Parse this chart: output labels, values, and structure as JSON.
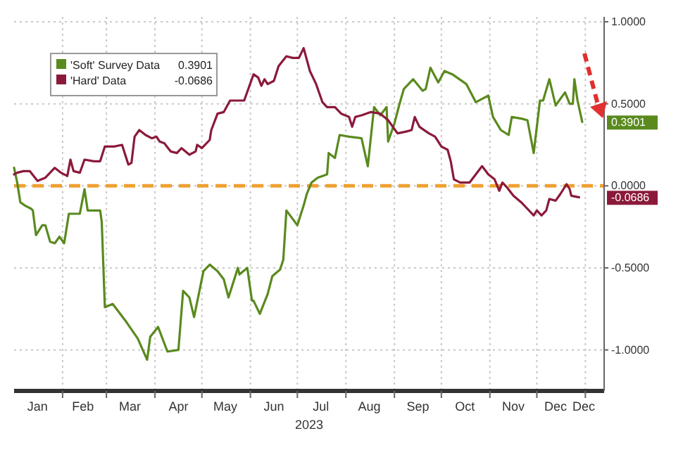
{
  "chart_data": {
    "type": "line",
    "xlabel": "2023",
    "legend": "top left",
    "grid": true,
    "line_style": "solid",
    "marker": "none",
    "xlim": [
      "2023-01-01",
      "2024-01-13"
    ],
    "xticks": [
      {
        "value": "2023-01-16",
        "label": "Jan"
      },
      {
        "value": "2023-02-01",
        "label": null
      },
      {
        "value": "2023-02-14",
        "label": "Feb"
      },
      {
        "value": "2023-03-01",
        "label": null
      },
      {
        "value": "2023-03-16",
        "label": "Mar"
      },
      {
        "value": "2023-04-01",
        "label": null
      },
      {
        "value": "2023-04-16",
        "label": "Apr"
      },
      {
        "value": "2023-05-01",
        "label": null
      },
      {
        "value": "2023-05-16",
        "label": "May"
      },
      {
        "value": "2023-06-01",
        "label": null
      },
      {
        "value": "2023-06-16",
        "label": "Jun"
      },
      {
        "value": "2023-07-01",
        "label": null
      },
      {
        "value": "2023-07-16",
        "label": "Jul"
      },
      {
        "value": "2023-08-01",
        "label": null
      },
      {
        "value": "2023-08-16",
        "label": "Aug"
      },
      {
        "value": "2023-09-01",
        "label": null
      },
      {
        "value": "2023-09-16",
        "label": "Sep"
      },
      {
        "value": "2023-10-01",
        "label": null
      },
      {
        "value": "2023-10-16",
        "label": "Oct"
      },
      {
        "value": "2023-11-01",
        "label": null
      },
      {
        "value": "2023-11-16",
        "label": "Nov"
      },
      {
        "value": "2023-12-01",
        "label": null
      },
      {
        "value": "2023-12-13",
        "label": "Dec"
      },
      {
        "value": "2024-01-01",
        "label": null
      },
      {
        "value": "2023-12-31",
        "label": "Dec"
      }
    ],
    "ylim": [
      -1.25,
      1.03
    ],
    "yticks": [
      {
        "value": 1,
        "label": "1.0000"
      },
      {
        "value": 0.5,
        "label": "0.5000"
      },
      {
        "value": 0,
        "label": "0.0000"
      },
      {
        "value": -0.5,
        "label": "-0.5000"
      },
      {
        "value": -1,
        "label": "-1.0000"
      }
    ],
    "ref_lines": [
      {
        "axis": "y",
        "value": 0,
        "color": "#f0a030",
        "line_style": "dashed"
      }
    ],
    "annotations": [
      {
        "text": "0.3901",
        "x": "2023-12-30",
        "y": 0.3901
      },
      {
        "text": "-0.0686",
        "x": "2023-12-28",
        "y": -0.0686
      }
    ],
    "series": [
      {
        "name": "'Soft' Survey Data",
        "color": "#5a8a1e",
        "x": [
          "2023-01-01",
          "2023-01-03",
          "2023-01-05",
          "2023-01-08",
          "2023-01-12",
          "2023-01-13",
          "2023-01-15",
          "2023-01-19",
          "2023-01-21",
          "2023-01-24",
          "2023-01-27",
          "2023-01-30",
          "2023-02-02",
          "2023-02-05",
          "2023-02-12",
          "2023-02-15",
          "2023-02-17",
          "2023-02-21",
          "2023-02-25",
          "2023-02-26",
          "2023-02-28",
          "2023-03-05",
          "2023-03-13",
          "2023-03-21",
          "2023-03-27",
          "2023-03-29",
          "2023-04-03",
          "2023-04-09",
          "2023-04-16",
          "2023-04-19",
          "2023-04-23",
          "2023-04-26",
          "2023-05-02",
          "2023-05-06",
          "2023-05-11",
          "2023-05-15",
          "2023-05-18",
          "2023-05-24",
          "2023-05-25",
          "2023-05-30",
          "2023-06-02",
          "2023-06-03",
          "2023-06-07",
          "2023-06-12",
          "2023-06-15",
          "2023-06-20",
          "2023-06-22",
          "2023-06-24",
          "2023-07-01",
          "2023-07-05",
          "2023-07-07",
          "2023-07-10",
          "2023-07-14",
          "2023-07-20",
          "2023-07-21",
          "2023-07-25",
          "2023-07-28",
          "2023-08-03",
          "2023-08-11",
          "2023-08-15",
          "2023-08-19",
          "2023-08-23",
          "2023-08-27",
          "2023-08-28",
          "2023-09-01",
          "2023-09-04",
          "2023-09-07",
          "2023-09-13",
          "2023-09-19",
          "2023-09-21",
          "2023-09-24",
          "2023-09-29",
          "2023-10-03",
          "2023-10-08",
          "2023-10-17",
          "2023-10-23",
          "2023-10-27",
          "2023-10-31",
          "2023-11-03",
          "2023-11-08",
          "2023-11-13",
          "2023-11-15",
          "2023-11-21",
          "2023-11-25",
          "2023-11-29",
          "2023-12-03",
          "2023-12-05",
          "2023-12-09",
          "2023-12-13",
          "2023-12-19",
          "2023-12-22",
          "2023-12-24",
          "2023-12-25",
          "2023-12-27",
          "2023-12-30"
        ],
        "values": [
          0.11,
          0.02,
          -0.1,
          -0.12,
          -0.14,
          -0.15,
          -0.3,
          -0.24,
          -0.24,
          -0.34,
          -0.35,
          -0.31,
          -0.35,
          -0.17,
          -0.17,
          -0.02,
          -0.15,
          -0.15,
          -0.15,
          -0.22,
          -0.74,
          -0.72,
          -0.82,
          -0.93,
          -1.06,
          -0.92,
          -0.86,
          -1.01,
          -1.0,
          -0.64,
          -0.68,
          -0.8,
          -0.52,
          -0.48,
          -0.52,
          -0.57,
          -0.68,
          -0.5,
          -0.54,
          -0.5,
          -0.7,
          -0.7,
          -0.78,
          -0.66,
          -0.55,
          -0.51,
          -0.45,
          -0.15,
          -0.24,
          -0.12,
          -0.05,
          0.02,
          0.05,
          0.07,
          0.2,
          0.17,
          0.31,
          0.3,
          0.29,
          0.12,
          0.48,
          0.43,
          0.48,
          0.27,
          0.38,
          0.49,
          0.59,
          0.65,
          0.58,
          0.59,
          0.72,
          0.63,
          0.7,
          0.68,
          0.62,
          0.51,
          0.53,
          0.55,
          0.42,
          0.34,
          0.31,
          0.42,
          0.41,
          0.4,
          0.2,
          0.52,
          0.52,
          0.65,
          0.49,
          0.57,
          0.5,
          0.5,
          0.65,
          0.52,
          0.39
        ]
      },
      {
        "name": "'Hard' Data",
        "color": "#8b1a3a",
        "x": [
          "2023-01-01",
          "2023-01-03",
          "2023-01-07",
          "2023-01-11",
          "2023-01-16",
          "2023-01-21",
          "2023-01-27",
          "2023-01-31",
          "2023-02-04",
          "2023-02-06",
          "2023-02-08",
          "2023-02-12",
          "2023-02-15",
          "2023-02-21",
          "2023-02-25",
          "2023-02-28",
          "2023-03-06",
          "2023-03-11",
          "2023-03-15",
          "2023-03-17",
          "2023-03-19",
          "2023-03-22",
          "2023-03-26",
          "2023-03-30",
          "2023-04-02",
          "2023-04-04",
          "2023-04-07",
          "2023-04-11",
          "2023-04-15",
          "2023-04-18",
          "2023-04-23",
          "2023-04-27",
          "2023-04-28",
          "2023-05-01",
          "2023-05-06",
          "2023-05-07",
          "2023-05-11",
          "2023-05-15",
          "2023-05-19",
          "2023-05-22",
          "2023-05-28",
          "2023-06-03",
          "2023-06-06",
          "2023-06-08",
          "2023-06-10",
          "2023-06-12",
          "2023-06-16",
          "2023-06-19",
          "2023-06-24",
          "2023-06-28",
          "2023-07-02",
          "2023-07-05",
          "2023-07-09",
          "2023-07-13",
          "2023-07-17",
          "2023-07-20",
          "2023-07-22",
          "2023-07-25",
          "2023-07-29",
          "2023-08-03",
          "2023-08-05",
          "2023-08-07",
          "2023-08-11",
          "2023-08-17",
          "2023-08-23",
          "2023-08-28",
          "2023-09-03",
          "2023-09-08",
          "2023-09-12",
          "2023-09-14",
          "2023-09-17",
          "2023-09-23",
          "2023-09-27",
          "2023-10-01",
          "2023-10-05",
          "2023-10-07",
          "2023-10-09",
          "2023-10-13",
          "2023-10-19",
          "2023-10-23",
          "2023-10-27",
          "2023-10-31",
          "2023-11-04",
          "2023-11-07",
          "2023-11-09",
          "2023-11-12",
          "2023-11-16",
          "2023-11-21",
          "2023-11-25",
          "2023-11-29",
          "2023-12-01",
          "2023-12-04",
          "2023-12-07",
          "2023-12-09",
          "2023-12-13",
          "2023-12-16",
          "2023-12-20",
          "2023-12-22",
          "2023-12-23",
          "2023-12-28"
        ],
        "values": [
          0.07,
          0.08,
          0.09,
          0.09,
          0.03,
          0.05,
          0.11,
          0.08,
          0.06,
          0.16,
          0.09,
          0.08,
          0.16,
          0.15,
          0.15,
          0.24,
          0.24,
          0.25,
          0.13,
          0.14,
          0.3,
          0.34,
          0.31,
          0.29,
          0.3,
          0.27,
          0.26,
          0.21,
          0.2,
          0.23,
          0.19,
          0.21,
          0.25,
          0.23,
          0.28,
          0.34,
          0.44,
          0.45,
          0.52,
          0.52,
          0.52,
          0.68,
          0.66,
          0.61,
          0.65,
          0.62,
          0.64,
          0.73,
          0.79,
          0.78,
          0.78,
          0.84,
          0.7,
          0.62,
          0.51,
          0.48,
          0.48,
          0.48,
          0.44,
          0.42,
          0.36,
          0.42,
          0.43,
          0.45,
          0.44,
          0.4,
          0.32,
          0.33,
          0.34,
          0.42,
          0.36,
          0.32,
          0.3,
          0.24,
          0.22,
          0.15,
          0.04,
          0.02,
          0.02,
          0.07,
          0.12,
          0.07,
          0.04,
          -0.03,
          0.02,
          -0.01,
          -0.06,
          -0.1,
          -0.14,
          -0.18,
          -0.15,
          -0.18,
          -0.15,
          -0.08,
          -0.09,
          -0.05,
          0.01,
          -0.02,
          -0.06,
          -0.07
        ]
      }
    ]
  }
}
